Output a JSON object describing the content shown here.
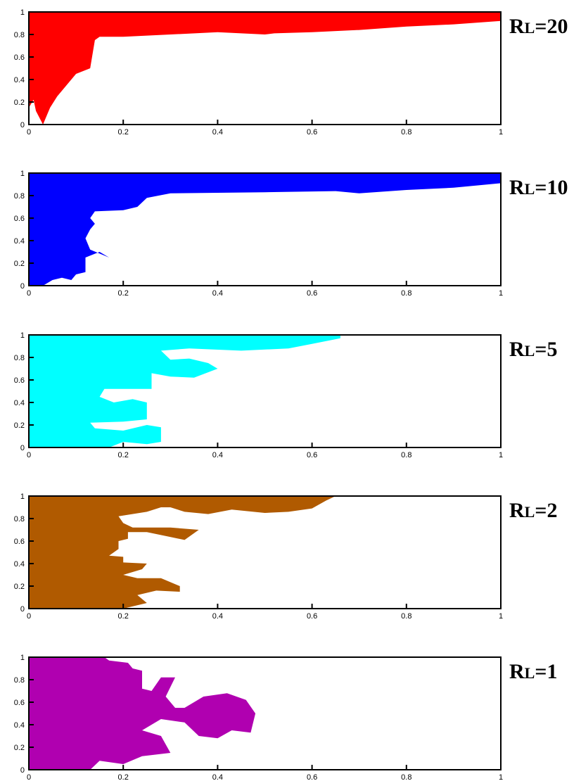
{
  "chart_data": [
    {
      "type": "area",
      "label": "RL=20",
      "color": "#ff0000",
      "xlim": [
        0,
        1
      ],
      "ylim": [
        0,
        1
      ],
      "x_ticks": [
        "0",
        "0.2",
        "0.4",
        "0.6",
        "0.8",
        "1"
      ],
      "y_ticks": [
        "0",
        "0.2",
        "0.4",
        "0.6",
        "0.8",
        "1"
      ],
      "grid": false,
      "region": [
        [
          0,
          0
        ],
        [
          0,
          0.15
        ],
        [
          0.01,
          0.22
        ],
        [
          0.015,
          0.12
        ],
        [
          0.03,
          0.0
        ],
        [
          0.045,
          0.15
        ],
        [
          0.06,
          0.25
        ],
        [
          0.08,
          0.35
        ],
        [
          0.1,
          0.45
        ],
        [
          0.13,
          0.5
        ],
        [
          0.14,
          0.75
        ],
        [
          0.15,
          0.78
        ],
        [
          0.2,
          0.78
        ],
        [
          0.3,
          0.8
        ],
        [
          0.4,
          0.82
        ],
        [
          0.5,
          0.8
        ],
        [
          0.52,
          0.81
        ],
        [
          0.6,
          0.82
        ],
        [
          0.7,
          0.84
        ],
        [
          0.8,
          0.87
        ],
        [
          0.9,
          0.89
        ],
        [
          1,
          0.92
        ],
        [
          1,
          1
        ],
        [
          0,
          1
        ]
      ]
    },
    {
      "type": "area",
      "label": "RL=10",
      "color": "#0000ff",
      "xlim": [
        0,
        1
      ],
      "ylim": [
        0,
        1
      ],
      "x_ticks": [
        "0",
        "0.2",
        "0.4",
        "0.6",
        "0.8",
        "1"
      ],
      "y_ticks": [
        "0",
        "0.2",
        "0.4",
        "0.6",
        "0.8",
        "1"
      ],
      "grid": false,
      "region": [
        [
          0,
          0
        ],
        [
          0.03,
          0
        ],
        [
          0.05,
          0.05
        ],
        [
          0.07,
          0.07
        ],
        [
          0.09,
          0.05
        ],
        [
          0.1,
          0.1
        ],
        [
          0.12,
          0.12
        ],
        [
          0.12,
          0.25
        ],
        [
          0.15,
          0.3
        ],
        [
          0.17,
          0.25
        ],
        [
          0.13,
          0.32
        ],
        [
          0.12,
          0.42
        ],
        [
          0.13,
          0.5
        ],
        [
          0.14,
          0.55
        ],
        [
          0.13,
          0.6
        ],
        [
          0.14,
          0.66
        ],
        [
          0.2,
          0.67
        ],
        [
          0.23,
          0.7
        ],
        [
          0.25,
          0.78
        ],
        [
          0.3,
          0.82
        ],
        [
          0.5,
          0.83
        ],
        [
          0.65,
          0.84
        ],
        [
          0.7,
          0.82
        ],
        [
          0.8,
          0.85
        ],
        [
          0.9,
          0.87
        ],
        [
          1,
          0.91
        ],
        [
          1,
          1
        ],
        [
          0,
          1
        ]
      ]
    },
    {
      "type": "area",
      "label": "RL=5",
      "color": "#00ffff",
      "xlim": [
        0,
        1
      ],
      "ylim": [
        0,
        1
      ],
      "x_ticks": [
        "0",
        "0.2",
        "0.4",
        "0.6",
        "0.8",
        "1"
      ],
      "y_ticks": [
        "0",
        "0.2",
        "0.4",
        "0.6",
        "0.8",
        "1"
      ],
      "grid": false,
      "region": [
        [
          0,
          0
        ],
        [
          0.17,
          0
        ],
        [
          0.2,
          0.05
        ],
        [
          0.25,
          0.03
        ],
        [
          0.28,
          0.05
        ],
        [
          0.28,
          0.18
        ],
        [
          0.25,
          0.2
        ],
        [
          0.2,
          0.15
        ],
        [
          0.14,
          0.17
        ],
        [
          0.13,
          0.22
        ],
        [
          0.2,
          0.23
        ],
        [
          0.25,
          0.25
        ],
        [
          0.25,
          0.4
        ],
        [
          0.22,
          0.43
        ],
        [
          0.18,
          0.4
        ],
        [
          0.15,
          0.45
        ],
        [
          0.16,
          0.52
        ],
        [
          0.2,
          0.52
        ],
        [
          0.26,
          0.52
        ],
        [
          0.26,
          0.66
        ],
        [
          0.3,
          0.63
        ],
        [
          0.35,
          0.62
        ],
        [
          0.4,
          0.7
        ],
        [
          0.38,
          0.75
        ],
        [
          0.34,
          0.79
        ],
        [
          0.3,
          0.78
        ],
        [
          0.28,
          0.86
        ],
        [
          0.34,
          0.88
        ],
        [
          0.45,
          0.86
        ],
        [
          0.55,
          0.88
        ],
        [
          0.6,
          0.92
        ],
        [
          0.66,
          0.97
        ],
        [
          0.66,
          1
        ],
        [
          0,
          1
        ]
      ]
    },
    {
      "type": "area",
      "label": "RL=2",
      "color": "#b05a00",
      "xlim": [
        0,
        1
      ],
      "ylim": [
        0,
        1
      ],
      "x_ticks": [
        "0",
        "0.2",
        "0.4",
        "0.6",
        "0.8",
        "1"
      ],
      "y_ticks": [
        "0",
        "0.2",
        "0.4",
        "0.6",
        "0.8",
        "1"
      ],
      "grid": false,
      "region": [
        [
          0,
          0
        ],
        [
          0.2,
          0
        ],
        [
          0.25,
          0.05
        ],
        [
          0.23,
          0.12
        ],
        [
          0.27,
          0.16
        ],
        [
          0.32,
          0.15
        ],
        [
          0.32,
          0.2
        ],
        [
          0.28,
          0.27
        ],
        [
          0.23,
          0.27
        ],
        [
          0.2,
          0.3
        ],
        [
          0.24,
          0.35
        ],
        [
          0.25,
          0.4
        ],
        [
          0.2,
          0.41
        ],
        [
          0.2,
          0.46
        ],
        [
          0.17,
          0.47
        ],
        [
          0.19,
          0.53
        ],
        [
          0.19,
          0.6
        ],
        [
          0.21,
          0.62
        ],
        [
          0.21,
          0.68
        ],
        [
          0.25,
          0.68
        ],
        [
          0.33,
          0.61
        ],
        [
          0.36,
          0.7
        ],
        [
          0.3,
          0.72
        ],
        [
          0.22,
          0.72
        ],
        [
          0.2,
          0.76
        ],
        [
          0.19,
          0.82
        ],
        [
          0.25,
          0.86
        ],
        [
          0.28,
          0.9
        ],
        [
          0.3,
          0.9
        ],
        [
          0.33,
          0.86
        ],
        [
          0.38,
          0.84
        ],
        [
          0.43,
          0.88
        ],
        [
          0.5,
          0.85
        ],
        [
          0.55,
          0.86
        ],
        [
          0.6,
          0.89
        ],
        [
          0.63,
          0.96
        ],
        [
          0.65,
          1
        ],
        [
          0,
          1
        ]
      ]
    },
    {
      "type": "area",
      "label": "RL=1",
      "color": "#b000b0",
      "xlim": [
        0,
        1
      ],
      "ylim": [
        0,
        1
      ],
      "x_ticks": [
        "0",
        "0.2",
        "0.4",
        "0.6",
        "0.8",
        "1"
      ],
      "y_ticks": [
        "0",
        "0.2",
        "0.4",
        "0.6",
        "0.8",
        "1"
      ],
      "grid": false,
      "region": [
        [
          0,
          0
        ],
        [
          0.13,
          0
        ],
        [
          0.15,
          0.08
        ],
        [
          0.2,
          0.05
        ],
        [
          0.24,
          0.12
        ],
        [
          0.3,
          0.15
        ],
        [
          0.28,
          0.3
        ],
        [
          0.24,
          0.35
        ],
        [
          0.28,
          0.45
        ],
        [
          0.33,
          0.42
        ],
        [
          0.36,
          0.3
        ],
        [
          0.4,
          0.28
        ],
        [
          0.43,
          0.35
        ],
        [
          0.47,
          0.33
        ],
        [
          0.48,
          0.5
        ],
        [
          0.46,
          0.62
        ],
        [
          0.42,
          0.68
        ],
        [
          0.37,
          0.65
        ],
        [
          0.33,
          0.55
        ],
        [
          0.31,
          0.55
        ],
        [
          0.29,
          0.65
        ],
        [
          0.31,
          0.82
        ],
        [
          0.28,
          0.82
        ],
        [
          0.26,
          0.7
        ],
        [
          0.24,
          0.72
        ],
        [
          0.24,
          0.88
        ],
        [
          0.22,
          0.9
        ],
        [
          0.21,
          0.95
        ],
        [
          0.17,
          0.97
        ],
        [
          0.16,
          1
        ],
        [
          0,
          1
        ]
      ]
    }
  ]
}
